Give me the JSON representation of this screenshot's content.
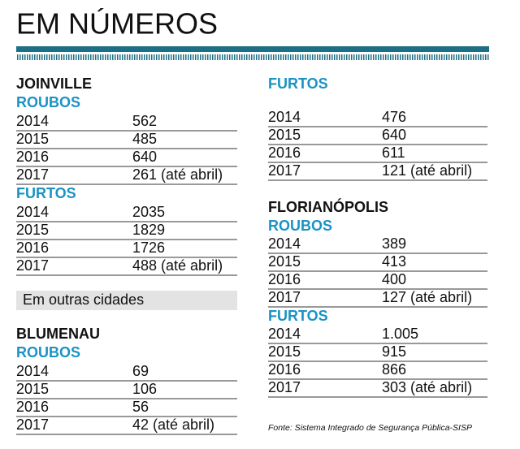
{
  "title": "EM NÚMEROS",
  "columns": [
    [
      {
        "heading": "JOINVILLE"
      },
      {
        "subheading": "ROUBOS"
      },
      {
        "rows": [
          [
            "2014",
            "562"
          ],
          [
            "2015",
            "485"
          ],
          [
            "2016",
            "640"
          ],
          [
            "2017",
            "261 (até abril)"
          ]
        ]
      },
      {
        "subheading": "FURTOS"
      },
      {
        "rows": [
          [
            "2014",
            "2035"
          ],
          [
            "2015",
            "1829"
          ],
          [
            "2016",
            "1726"
          ],
          [
            "2017",
            "488 (até abril)"
          ]
        ]
      },
      {
        "note": "Em outras cidades"
      },
      {
        "heading": "BLUMENAU"
      },
      {
        "subheading": "ROUBOS"
      },
      {
        "rows": [
          [
            "2014",
            "69"
          ],
          [
            "2015",
            "106"
          ],
          [
            "2016",
            "56"
          ],
          [
            "2017",
            "42 (até abril)"
          ]
        ]
      }
    ],
    [
      {
        "subheading": "FURTOS"
      },
      {
        "rows": [
          [
            "2014",
            "476"
          ],
          [
            "2015",
            "640"
          ],
          [
            "2016",
            "611"
          ],
          [
            "2017",
            "121 (até abril)"
          ]
        ]
      },
      {
        "heading": "FLORIANÓPOLIS"
      },
      {
        "subheading": "ROUBOS"
      },
      {
        "rows": [
          [
            "2014",
            "389"
          ],
          [
            "2015",
            "413"
          ],
          [
            "2016",
            "400"
          ],
          [
            "2017",
            "127 (até abril)"
          ]
        ]
      },
      {
        "subheading": "FURTOS"
      },
      {
        "rows": [
          [
            "2014",
            "1.005"
          ],
          [
            "2015",
            "915"
          ],
          [
            "2016",
            "866"
          ],
          [
            "2017",
            "303 (até abril)"
          ]
        ]
      }
    ]
  ],
  "source": "Fonte: Sistema Integrado de Segurança Pública-SISP"
}
